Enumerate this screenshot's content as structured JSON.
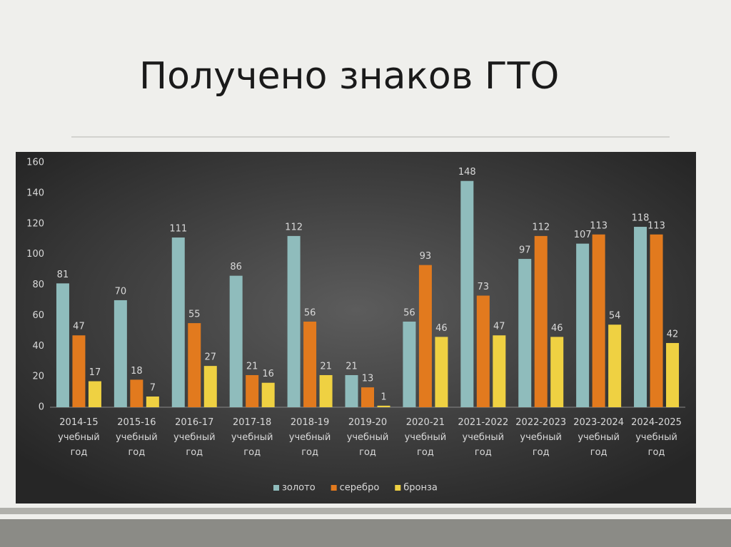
{
  "chart_data": {
    "type": "bar",
    "title": "Получено знаков ГТО",
    "categories": [
      "2014-15\nучебный\nгод",
      "2015-16\nучебный\nгод",
      "2016-17\nучебный\nгод",
      "2017-18\nучебный\nгод",
      "2018-19\nучебный\nгод",
      "2019-20\nучебный\nгод",
      "2020-21\nучебный\nгод",
      "2021-2022\nучебный\nгод",
      "2022-2023\nучебный\nгод",
      "2023-2024\nучебный\nгод",
      "2024-2025\nучебный\nгод"
    ],
    "series": [
      {
        "name": "золото",
        "color": "#8fbcbc",
        "values": [
          81,
          70,
          111,
          86,
          112,
          21,
          56,
          148,
          97,
          107,
          118
        ]
      },
      {
        "name": "серебро",
        "color": "#e27a1e",
        "values": [
          47,
          18,
          55,
          21,
          56,
          13,
          93,
          73,
          112,
          113,
          113
        ]
      },
      {
        "name": "бронза",
        "color": "#efd142",
        "values": [
          17,
          7,
          27,
          16,
          21,
          1,
          46,
          47,
          46,
          54,
          42
        ]
      }
    ],
    "ylim": [
      0,
      160
    ],
    "yticks": [
      0,
      20,
      40,
      60,
      80,
      100,
      120,
      140,
      160
    ],
    "grid": false,
    "legend": "bottom"
  }
}
